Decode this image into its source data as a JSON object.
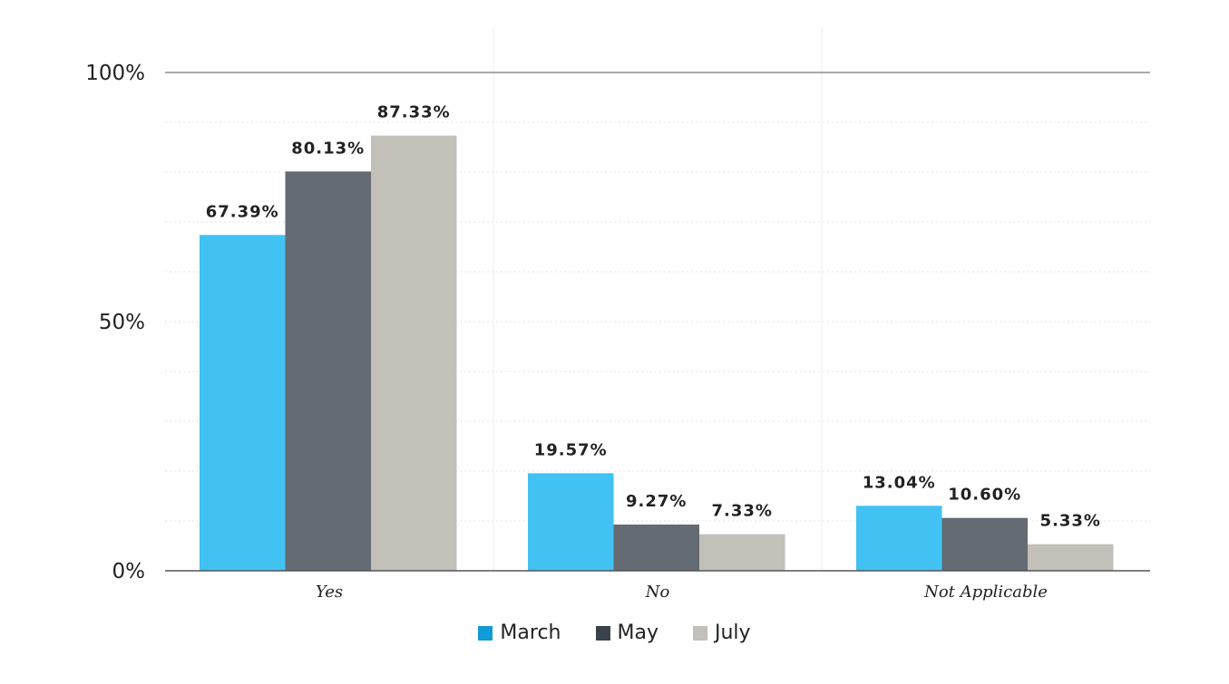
{
  "chart_data": {
    "type": "bar",
    "categories": [
      "Yes",
      "No",
      "Not Applicable"
    ],
    "series": [
      {
        "name": "March",
        "values": [
          67.39,
          19.57,
          13.04
        ],
        "color": "#41c2f2",
        "legend_color": "#119ad8"
      },
      {
        "name": "May",
        "values": [
          80.13,
          9.27,
          10.6
        ],
        "color": "#646b72",
        "legend_color": "#3a434b"
      },
      {
        "name": "July",
        "values": [
          87.33,
          7.33,
          5.33
        ],
        "color": "#c3bfb9",
        "legend_color": "#c3bfb9"
      }
    ],
    "data_labels": [
      [
        "67.39%",
        "19.57%",
        "13.04%"
      ],
      [
        "80.13%",
        "9.27%",
        "10.60%"
      ],
      [
        "87.33%",
        "7.33%",
        "5.33%"
      ]
    ],
    "y_ticks": [
      {
        "value": 0,
        "label": "0%"
      },
      {
        "value": 50,
        "label": "50%"
      },
      {
        "value": 100,
        "label": "100%"
      }
    ],
    "ylim": [
      0,
      100
    ],
    "minor_gridline_step": 10,
    "grid": true,
    "legend_position": "bottom",
    "title": "",
    "xlabel": "",
    "ylabel": ""
  }
}
